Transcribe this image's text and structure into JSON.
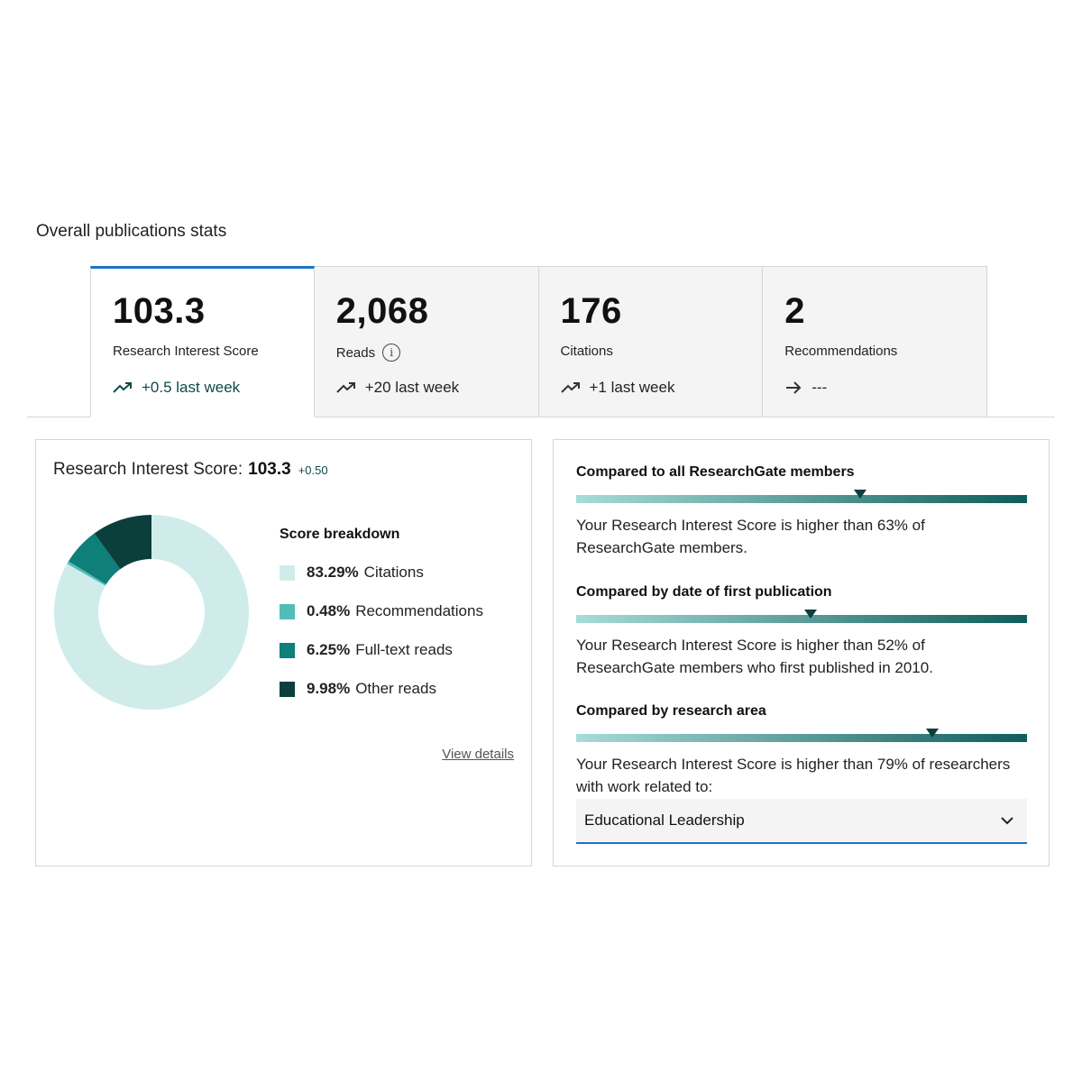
{
  "section_title": "Overall publications stats",
  "tabs": [
    {
      "value": "103.3",
      "label": "Research Interest Score",
      "delta": "+0.5 last week",
      "trend": "up"
    },
    {
      "value": "2,068",
      "label": "Reads",
      "delta": "+20 last week",
      "trend": "up"
    },
    {
      "value": "176",
      "label": "Citations",
      "delta": "+1 last week",
      "trend": "up"
    },
    {
      "value": "2",
      "label": "Recommendations",
      "delta": "---",
      "trend": "flat"
    }
  ],
  "ris_card": {
    "title_prefix": "Research Interest Score:",
    "score": "103.3",
    "change": "+0.50",
    "breakdown_title": "Score breakdown",
    "view_details": "View details",
    "breakdown": [
      {
        "percent": "83.29%",
        "label": "Citations",
        "value": 83.29,
        "color": "#cfeceb"
      },
      {
        "percent": "0.48%",
        "label": "Recommendations",
        "value": 0.48,
        "color": "#52bdb8"
      },
      {
        "percent": "6.25%",
        "label": "Full-text reads",
        "value": 6.25,
        "color": "#0e7f79"
      },
      {
        "percent": "9.98%",
        "label": "Other reads",
        "value": 9.98,
        "color": "#0b3f3c"
      }
    ]
  },
  "comparisons": [
    {
      "title": "Compared to all ResearchGate members",
      "percentile": 63,
      "text": "Your Research Interest Score is higher than 63% of ResearchGate members."
    },
    {
      "title": "Compared by date of first publication",
      "percentile": 52,
      "text": "Your Research Interest Score is higher than 52% of ResearchGate members who first published in 2010."
    },
    {
      "title": "Compared by research area",
      "percentile": 79,
      "text": "Your Research Interest Score is higher than 79% of researchers with work related to:"
    }
  ],
  "research_area": {
    "selected": "Educational Leadership"
  },
  "colors": {
    "accent": "#1a73c8",
    "teal_dark": "#0b3f3c",
    "teal_light": "#cfeceb"
  }
}
